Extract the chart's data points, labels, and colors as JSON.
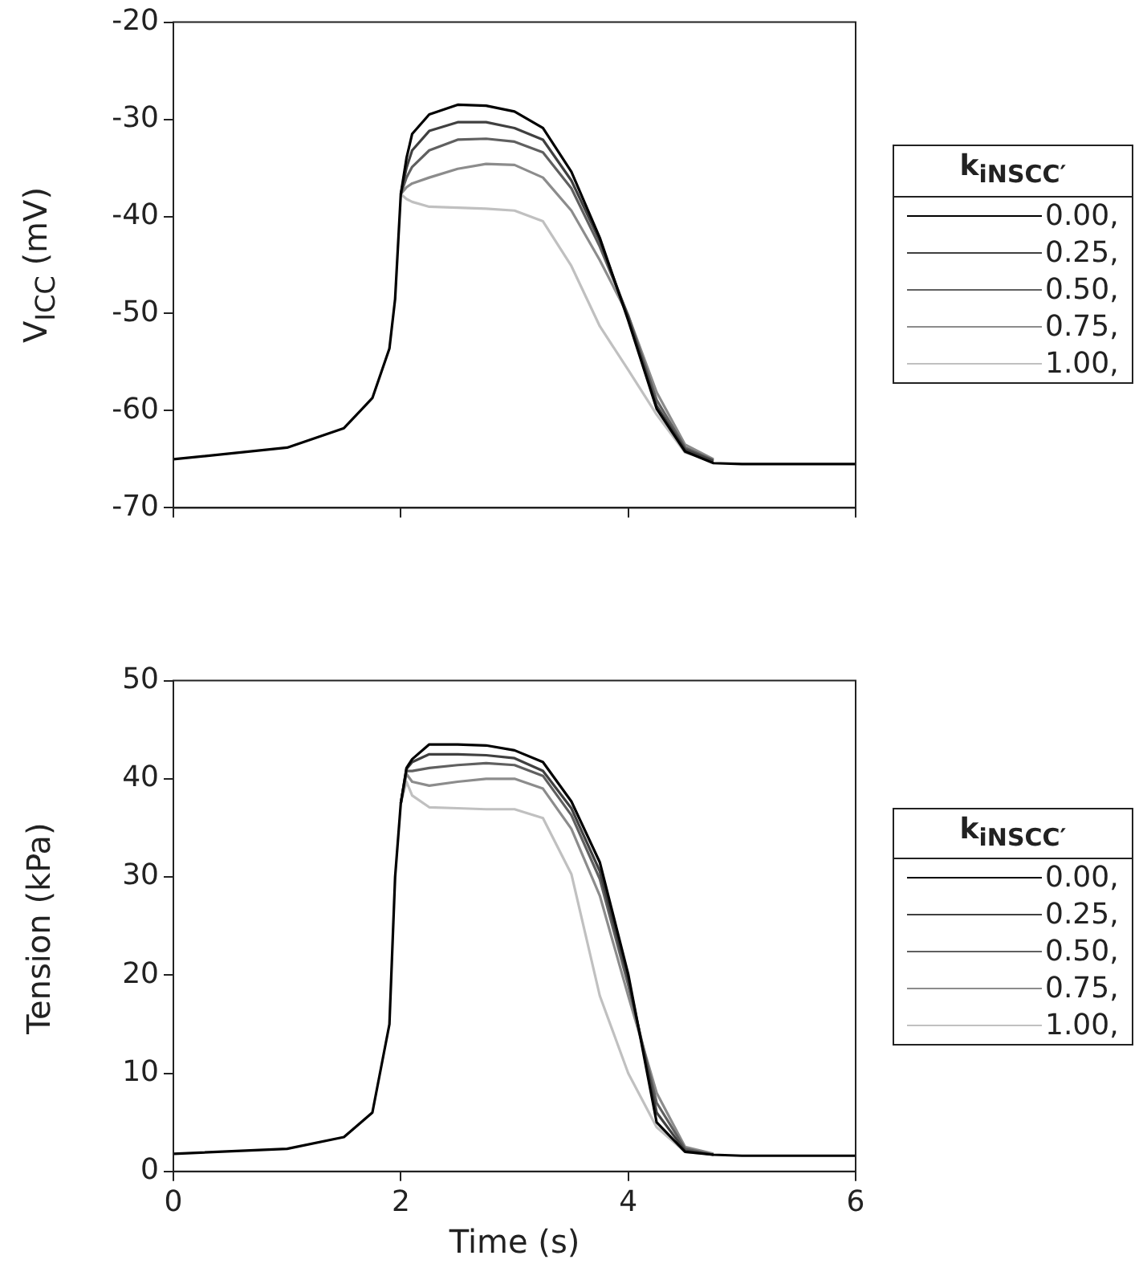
{
  "chart_data": [
    {
      "type": "line",
      "ylabel": "V$_{ICC}$ (mV)",
      "legend_title": "k$_{iNSCC′}$",
      "legend": "right",
      "grid": false,
      "tick_labels": "y",
      "marker": "none",
      "line_style": "solid",
      "xlim": [
        0,
        6
      ],
      "xticks": [
        0,
        2,
        4,
        6
      ],
      "ylim": [
        -70,
        -20
      ],
      "yticks": [
        -70,
        -60,
        -50,
        -40,
        -30,
        -20
      ],
      "x": [
        0,
        1,
        1.5,
        1.75,
        1.9,
        1.95,
        2.0,
        2.05,
        2.1,
        2.25,
        2.5,
        2.75,
        3.0,
        3.25,
        3.5,
        3.75,
        4.0,
        4.25,
        4.5,
        4.75,
        5,
        6
      ],
      "series": [
        {
          "name": "0.00,",
          "color": "#000000",
          "values": [
            -65.0,
            -63.8,
            -61.8,
            -58.7,
            -53.6,
            -48.5,
            -37.7,
            -34.0,
            -31.5,
            -29.5,
            -28.5,
            -28.6,
            -29.2,
            -30.9,
            -35.4,
            -42.2,
            -50.7,
            -59.8,
            -64.2,
            -65.4,
            -65.5,
            -65.5
          ]
        },
        {
          "name": "0.25,",
          "color": "#404040",
          "values": [
            null,
            null,
            null,
            null,
            null,
            null,
            -37.7,
            -35.0,
            -33.2,
            -31.2,
            -30.3,
            -30.3,
            -30.9,
            -32.1,
            -36.3,
            -42.5,
            -50.4,
            -59.5,
            -64.0,
            -65.2,
            null,
            null
          ]
        },
        {
          "name": "0.50,",
          "color": "#606060",
          "values": [
            null,
            null,
            null,
            null,
            null,
            null,
            -37.7,
            -36.0,
            -34.9,
            -33.2,
            -32.1,
            -32.0,
            -32.3,
            -33.4,
            -37.1,
            -43.1,
            -50.2,
            -58.9,
            -63.8,
            -65.1,
            null,
            null
          ]
        },
        {
          "name": "0.75,",
          "color": "#8c8c8c",
          "values": [
            null,
            null,
            null,
            null,
            null,
            null,
            -37.7,
            -37.0,
            -36.6,
            -36.0,
            -35.1,
            -34.6,
            -34.7,
            -36.0,
            -39.4,
            -44.5,
            -50.2,
            -58.1,
            -63.5,
            -65.0,
            null,
            null
          ]
        },
        {
          "name": "1.00,",
          "color": "#c0c0c0",
          "values": [
            null,
            null,
            null,
            null,
            null,
            null,
            -37.7,
            -38.2,
            -38.5,
            -39.0,
            -39.1,
            -39.2,
            -39.4,
            -40.5,
            -45.1,
            -51.3,
            -55.8,
            -60.4,
            -64.3,
            -65.2,
            null,
            null
          ]
        }
      ]
    },
    {
      "type": "line",
      "xlabel": "Time (s)",
      "ylabel": "Tension (kPa)",
      "legend_title": "k$_{iNSCC′}$",
      "legend": "right",
      "grid": false,
      "marker": "none",
      "line_style": "solid",
      "xlim": [
        0,
        6
      ],
      "xticks": [
        0,
        2,
        4,
        6
      ],
      "ylim": [
        0,
        50
      ],
      "yticks": [
        0,
        10,
        20,
        30,
        40,
        50
      ],
      "x": [
        0,
        1,
        1.5,
        1.75,
        1.9,
        1.95,
        2.0,
        2.05,
        2.1,
        2.25,
        2.5,
        2.75,
        3.0,
        3.25,
        3.5,
        3.75,
        4.0,
        4.25,
        4.5,
        4.75,
        5,
        6
      ],
      "series": [
        {
          "name": "0.00,",
          "color": "#000000",
          "values": [
            1.8,
            2.3,
            3.5,
            6,
            15,
            30,
            37.5,
            41.1,
            42.0,
            43.5,
            43.5,
            43.4,
            42.9,
            41.7,
            37.7,
            31.5,
            20.1,
            5,
            2,
            1.7,
            1.6,
            1.6
          ]
        },
        {
          "name": "0.25,",
          "color": "#404040",
          "values": [
            null,
            null,
            null,
            null,
            null,
            null,
            37.5,
            41.0,
            41.7,
            42.5,
            42.5,
            42.4,
            42.1,
            40.8,
            37.0,
            30.6,
            19.6,
            6,
            2.1,
            1.7,
            null,
            null
          ]
        },
        {
          "name": "0.50,",
          "color": "#606060",
          "values": [
            null,
            null,
            null,
            null,
            null,
            null,
            37.5,
            40.8,
            40.8,
            41.1,
            41.4,
            41.6,
            41.4,
            40.3,
            36.3,
            29.8,
            19.0,
            7,
            2.3,
            1.7,
            null,
            null
          ]
        },
        {
          "name": "0.75,",
          "color": "#8c8c8c",
          "values": [
            null,
            null,
            null,
            null,
            null,
            null,
            37.5,
            40.5,
            39.7,
            39.3,
            39.7,
            40.0,
            40.0,
            39.0,
            34.9,
            28.1,
            17.9,
            8,
            2.5,
            1.8,
            null,
            null
          ]
        },
        {
          "name": "1.00,",
          "color": "#c0c0c0",
          "values": [
            null,
            null,
            null,
            null,
            null,
            null,
            37.5,
            39.7,
            38.3,
            37.1,
            37.0,
            36.9,
            36.9,
            36.0,
            30.3,
            17.9,
            10,
            4.5,
            2,
            1.7,
            null,
            null
          ]
        }
      ]
    }
  ]
}
